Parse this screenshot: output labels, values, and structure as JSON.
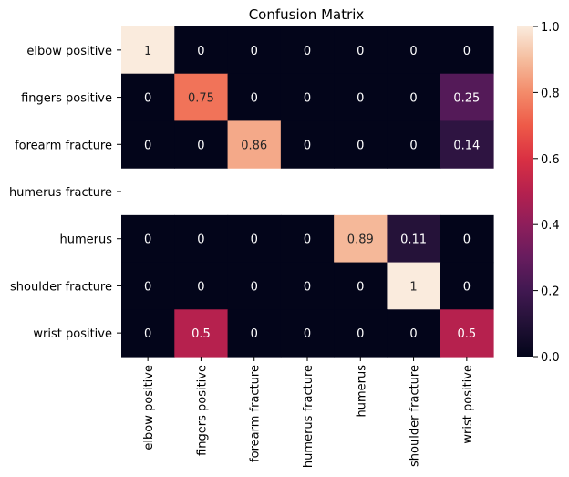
{
  "chart_data": {
    "type": "heatmap",
    "title": "Confusion Matrix",
    "xlabel": "",
    "ylabel": "",
    "x_categories": [
      "elbow positive",
      "fingers positive",
      "forearm fracture",
      "humerus fracture",
      "humerus",
      "shoulder fracture",
      "wrist positive"
    ],
    "y_categories": [
      "elbow positive",
      "fingers positive",
      "forearm fracture",
      "humerus fracture",
      "humerus",
      "shoulder fracture",
      "wrist positive"
    ],
    "values": [
      [
        1,
        0,
        0,
        0,
        0,
        0,
        0
      ],
      [
        0,
        0.75,
        0,
        0,
        0,
        0,
        0.25
      ],
      [
        0,
        0,
        0.86,
        0,
        0,
        0,
        0.14
      ],
      [
        null,
        null,
        null,
        null,
        null,
        null,
        null
      ],
      [
        0,
        0,
        0,
        0,
        0.89,
        0.11,
        0
      ],
      [
        0,
        0,
        0,
        0,
        0,
        1,
        0
      ],
      [
        0,
        0.5,
        0,
        0,
        0,
        0,
        0.5
      ]
    ],
    "colorbar": {
      "range": [
        0,
        1
      ],
      "ticks": [
        "0.0",
        "0.2",
        "0.4",
        "0.6",
        "0.8",
        "1.0"
      ],
      "colormap": "rocket"
    },
    "grid": false,
    "annotated": true
  }
}
